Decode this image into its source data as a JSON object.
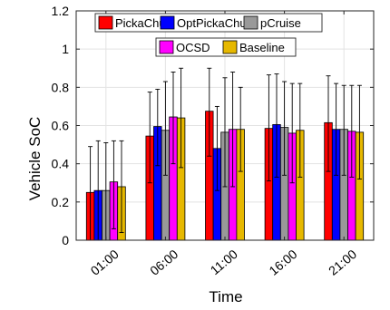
{
  "chart_data": {
    "type": "bar",
    "xlabel": "Time",
    "ylabel": "Vehicle SoC",
    "ylim": [
      0,
      1.2
    ],
    "yticks": [
      0,
      0.2,
      0.4,
      0.6,
      0.8,
      1,
      1.2
    ],
    "ytick_labels": [
      "0",
      "0.2",
      "0.4",
      "0.6",
      "0.8",
      "1",
      "1.2"
    ],
    "categories": [
      "01:00",
      "06:00",
      "11:00",
      "16:00",
      "21:00"
    ],
    "grid": true,
    "legend_placement": "top",
    "series": [
      {
        "name": "PickaChu",
        "color": "#ff0000",
        "values": [
          0.25,
          0.545,
          0.675,
          0.585,
          0.615
        ],
        "upper": [
          0.49,
          0.775,
          0.9,
          0.865,
          0.86
        ],
        "lower": [
          0.0,
          0.3,
          0.44,
          0.31,
          0.36
        ]
      },
      {
        "name": "OptPickaChu",
        "color": "#0000ff",
        "values": [
          0.26,
          0.595,
          0.48,
          0.605,
          0.58
        ],
        "upper": [
          0.52,
          0.79,
          0.7,
          0.87,
          0.82
        ],
        "lower": [
          0.0,
          0.39,
          0.26,
          0.33,
          0.34
        ]
      },
      {
        "name": "pCruise",
        "color": "#999999",
        "values": [
          0.26,
          0.575,
          0.565,
          0.59,
          0.58
        ],
        "upper": [
          0.51,
          0.83,
          0.85,
          0.83,
          0.81
        ],
        "lower": [
          0.0,
          0.34,
          0.28,
          0.34,
          0.34
        ]
      },
      {
        "name": "OCSD",
        "color": "#ff00ff",
        "values": [
          0.305,
          0.645,
          0.58,
          0.56,
          0.57
        ],
        "upper": [
          0.52,
          0.88,
          0.88,
          0.82,
          0.81
        ],
        "lower": [
          0.06,
          0.4,
          0.28,
          0.3,
          0.33
        ]
      },
      {
        "name": "Baseline",
        "color": "#e6b800",
        "values": [
          0.28,
          0.64,
          0.58,
          0.575,
          0.565
        ],
        "upper": [
          0.52,
          0.9,
          0.8,
          0.82,
          0.81
        ],
        "lower": [
          0.04,
          0.38,
          0.36,
          0.33,
          0.32
        ]
      }
    ]
  }
}
